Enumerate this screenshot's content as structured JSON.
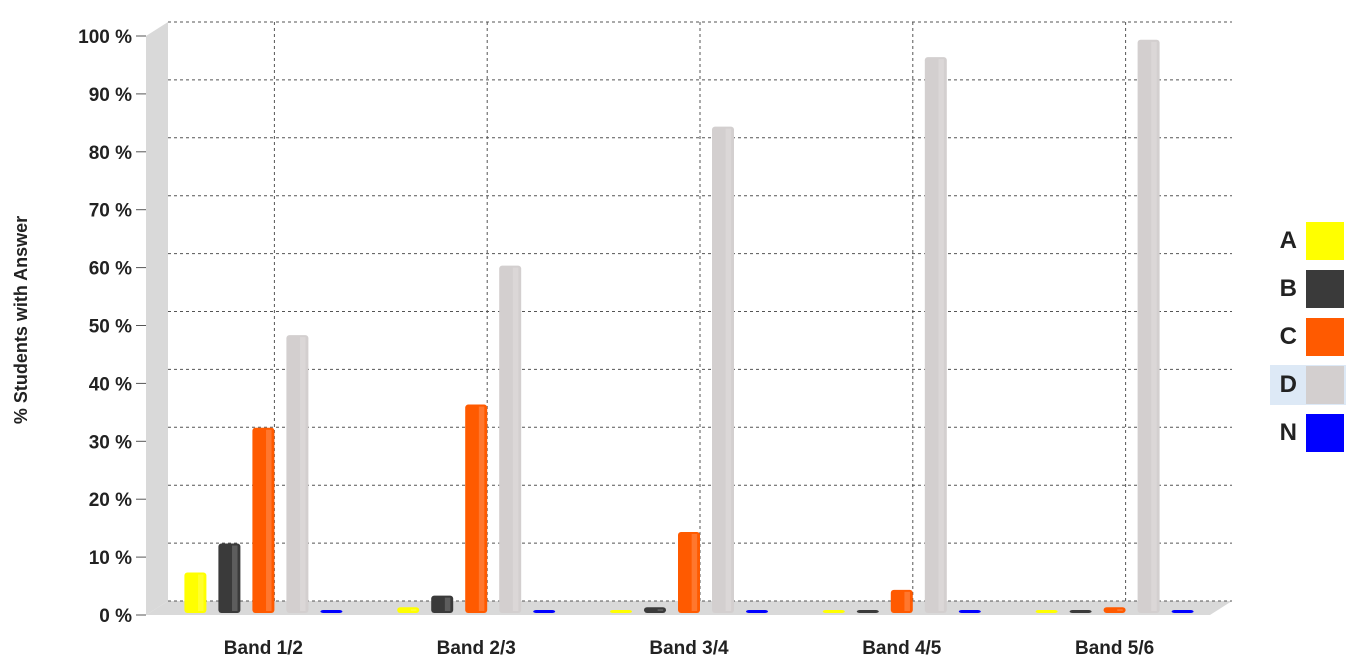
{
  "chart_data": {
    "type": "bar",
    "categories": [
      "Band 1/2",
      "Band 2/3",
      "Band 3/4",
      "Band 4/5",
      "Band 5/6"
    ],
    "series": [
      {
        "name": "A",
        "color": "#ffff00",
        "values": [
          7,
          1,
          0,
          0,
          0
        ]
      },
      {
        "name": "B",
        "color": "#3a3a3a",
        "values": [
          12,
          3,
          1,
          0,
          0
        ]
      },
      {
        "name": "C",
        "color": "#ff5a00",
        "values": [
          32,
          36,
          14,
          4,
          1
        ]
      },
      {
        "name": "D",
        "color": "#d3cfcf",
        "values": [
          48,
          60,
          84,
          96,
          99
        ]
      },
      {
        "name": "N",
        "color": "#0000ff",
        "values": [
          0,
          0,
          0,
          0,
          0
        ]
      }
    ],
    "ylabel": "% Students with Answer",
    "ylim": [
      0,
      100
    ],
    "yticks": [
      "0 %",
      "10 %",
      "20 %",
      "30 %",
      "40 %",
      "50 %",
      "60 %",
      "70 %",
      "80 %",
      "90 %",
      "100 %"
    ],
    "grid": true,
    "legend_position": "right",
    "highlighted_legend": "D"
  }
}
